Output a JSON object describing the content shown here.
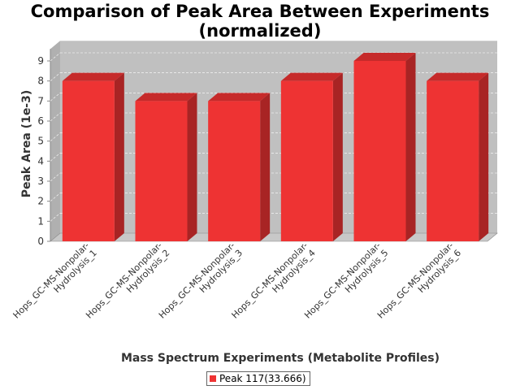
{
  "chart_data": {
    "type": "bar",
    "title_lines": [
      "Comparison of Peak Area Between Experiments",
      "(normalized)"
    ],
    "xlabel": "Mass Spectrum Experiments (Metabolite Profiles)",
    "ylabel": "Peak Area (1e-3)",
    "ylim": [
      0,
      9.6
    ],
    "yticks": [
      0,
      1,
      2,
      3,
      4,
      5,
      6,
      7,
      8,
      9
    ],
    "grid": true,
    "render_3d": true,
    "legend_position": "bottom",
    "categories": [
      [
        "Hops_GC-MS-Nonpolar-",
        "Hydrolysis_1"
      ],
      [
        "Hops_GC-MS-Nonpolar-",
        "Hydrolysis_2"
      ],
      [
        "Hops_GC-MS-Nonpolar-",
        "Hydrolysis_3"
      ],
      [
        "Hops_GC-MS-Nonpolar-",
        "Hydrolysis_4"
      ],
      [
        "Hops_GC-MS-Nonpolar-",
        "Hydrolysis_5"
      ],
      [
        "Hops_GC-MS-Nonpolar-",
        "Hydrolysis_6"
      ]
    ],
    "series": [
      {
        "name": "Peak 117(33.666)",
        "values": [
          8,
          7,
          7,
          8,
          9,
          8
        ],
        "color": "#ee3333"
      }
    ],
    "colors": {
      "plot_background": "#c0c0c0",
      "bar_front": "#ee3333",
      "bar_top": "#c62a2a",
      "bar_side": "#a82424"
    }
  }
}
